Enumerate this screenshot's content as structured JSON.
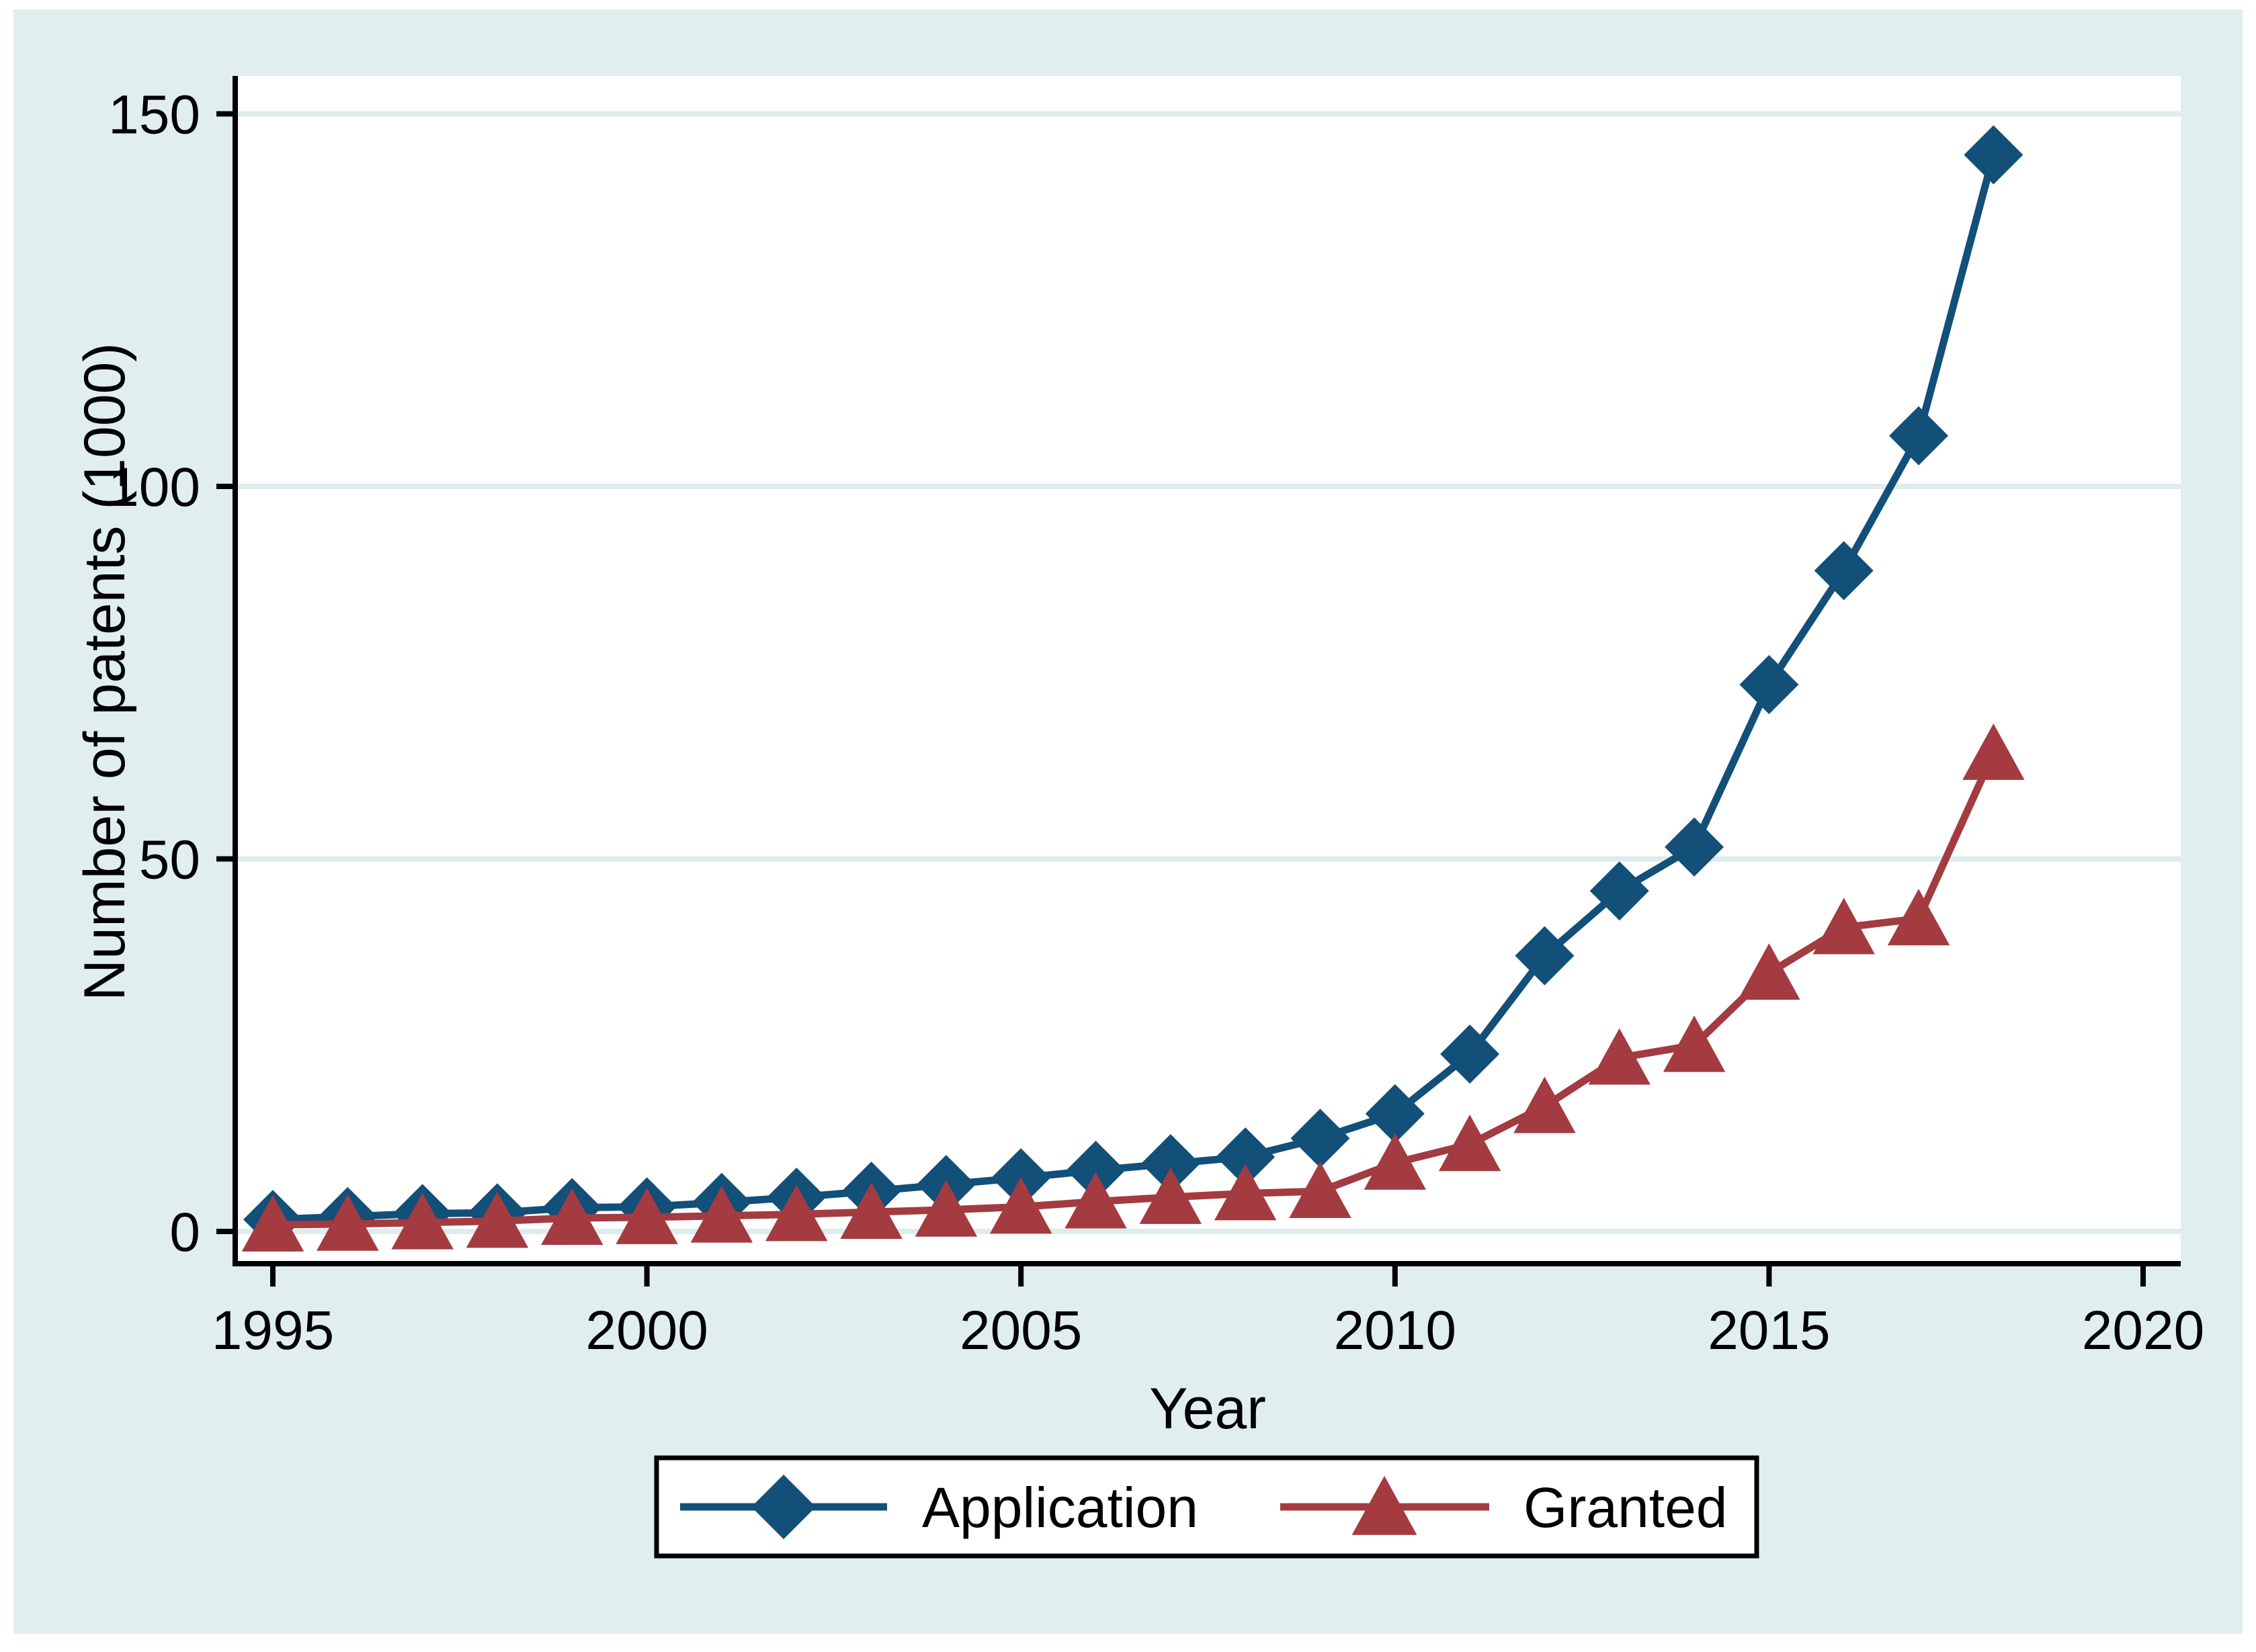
{
  "figure": {
    "page_background": "#ffffff",
    "canvas_background": "#e1eef0",
    "plot_background": "#ffffff",
    "gridline_color": "#dfecee",
    "axis_color": "#000000",
    "application_color": "#124f79",
    "granted_color": "#a33b40"
  },
  "chart_data": {
    "type": "line",
    "title": "",
    "xlabel": "Year",
    "ylabel": "Number of patents (1000)",
    "x_ticks": [
      1995,
      2000,
      2005,
      2010,
      2015,
      2020
    ],
    "y_ticks": [
      0,
      50,
      100,
      150
    ],
    "xlim": [
      1994.5,
      2020.5
    ],
    "ylim": [
      -4,
      155
    ],
    "grid": true,
    "legend_position": "bottom-center",
    "x": [
      1995,
      1996,
      1997,
      1998,
      1999,
      2000,
      2001,
      2002,
      2003,
      2004,
      2005,
      2006,
      2007,
      2008,
      2009,
      2010,
      2011,
      2012,
      2013,
      2014,
      2015,
      2016,
      2017,
      2018
    ],
    "series": [
      {
        "name": "Application",
        "marker": "diamond",
        "color": "#124f79",
        "values": [
          1.6,
          2.0,
          2.4,
          2.5,
          3.2,
          3.3,
          3.9,
          4.6,
          5.4,
          6.3,
          7.2,
          8.2,
          9.1,
          10.0,
          12.5,
          15.8,
          23.8,
          37.0,
          45.7,
          51.6,
          73.4,
          88.7,
          106.8,
          144.5
        ]
      },
      {
        "name": "Granted",
        "marker": "triangle",
        "color": "#a33b40",
        "values": [
          0.9,
          1.0,
          1.2,
          1.4,
          1.8,
          1.9,
          2.1,
          2.3,
          2.6,
          2.9,
          3.3,
          4.0,
          4.6,
          5.1,
          5.4,
          9.2,
          11.7,
          16.8,
          23.3,
          25.0,
          34.7,
          40.8,
          42.0,
          64.2
        ]
      }
    ]
  },
  "legend": {
    "items": [
      {
        "label": "Application"
      },
      {
        "label": "Granted"
      }
    ]
  }
}
